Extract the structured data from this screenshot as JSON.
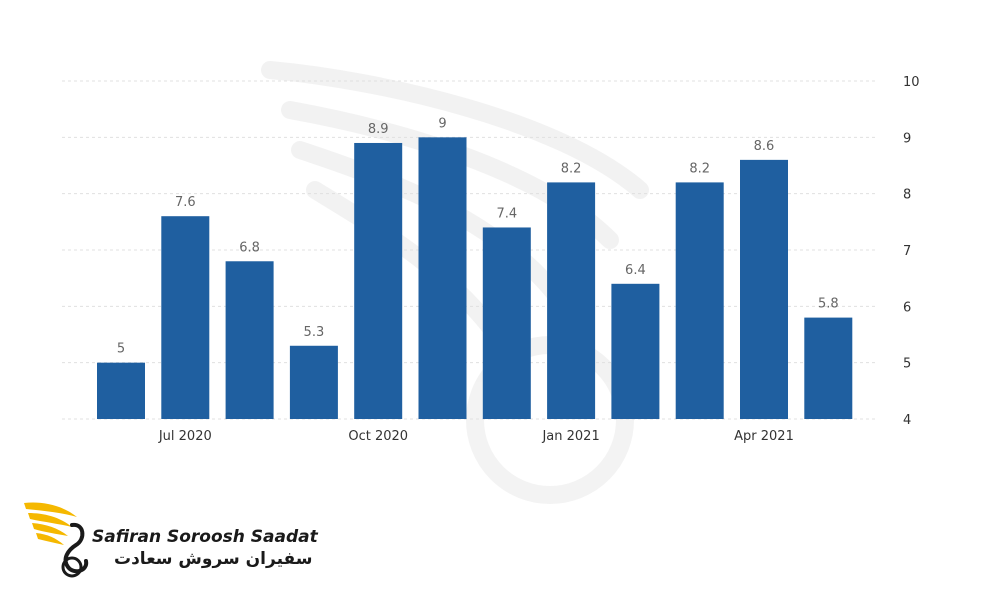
{
  "chart_data": {
    "type": "bar",
    "x": [
      "2020-06",
      "2020-07",
      "2020-08",
      "2020-09",
      "2020-10",
      "2020-11",
      "2020-12",
      "2021-01",
      "2021-02",
      "2021-03",
      "2021-04",
      "2021-05"
    ],
    "values": [
      5,
      7.6,
      6.8,
      5.3,
      8.9,
      9,
      7.4,
      8.2,
      6.4,
      8.2,
      8.6,
      5.8
    ],
    "data_labels": [
      "5",
      "7.6",
      "6.8",
      "5.3",
      "8.9",
      "9",
      "7.4",
      "8.2",
      "6.4",
      "8.2",
      "8.6",
      "5.8"
    ],
    "x_tick_labels": [
      {
        "label": "Jul 2020",
        "index": 1
      },
      {
        "label": "Oct 2020",
        "index": 4
      },
      {
        "label": "Jan 2021",
        "index": 7
      },
      {
        "label": "Apr 2021",
        "index": 10
      }
    ],
    "y_ticks": [
      "4",
      "5",
      "6",
      "7",
      "8",
      "9",
      "10"
    ],
    "ylim": [
      4,
      10
    ],
    "y_axis_side": "right",
    "grid": true,
    "bar_color": "#1f5fa0",
    "title": "",
    "xlabel": "",
    "ylabel": ""
  },
  "watermark": {
    "brand_en": "Safiran Soroosh Saadat",
    "brand_fa": "سفیران سروش سعادت",
    "accent_color": "#f5b800",
    "icon": "winged-logo-icon"
  }
}
